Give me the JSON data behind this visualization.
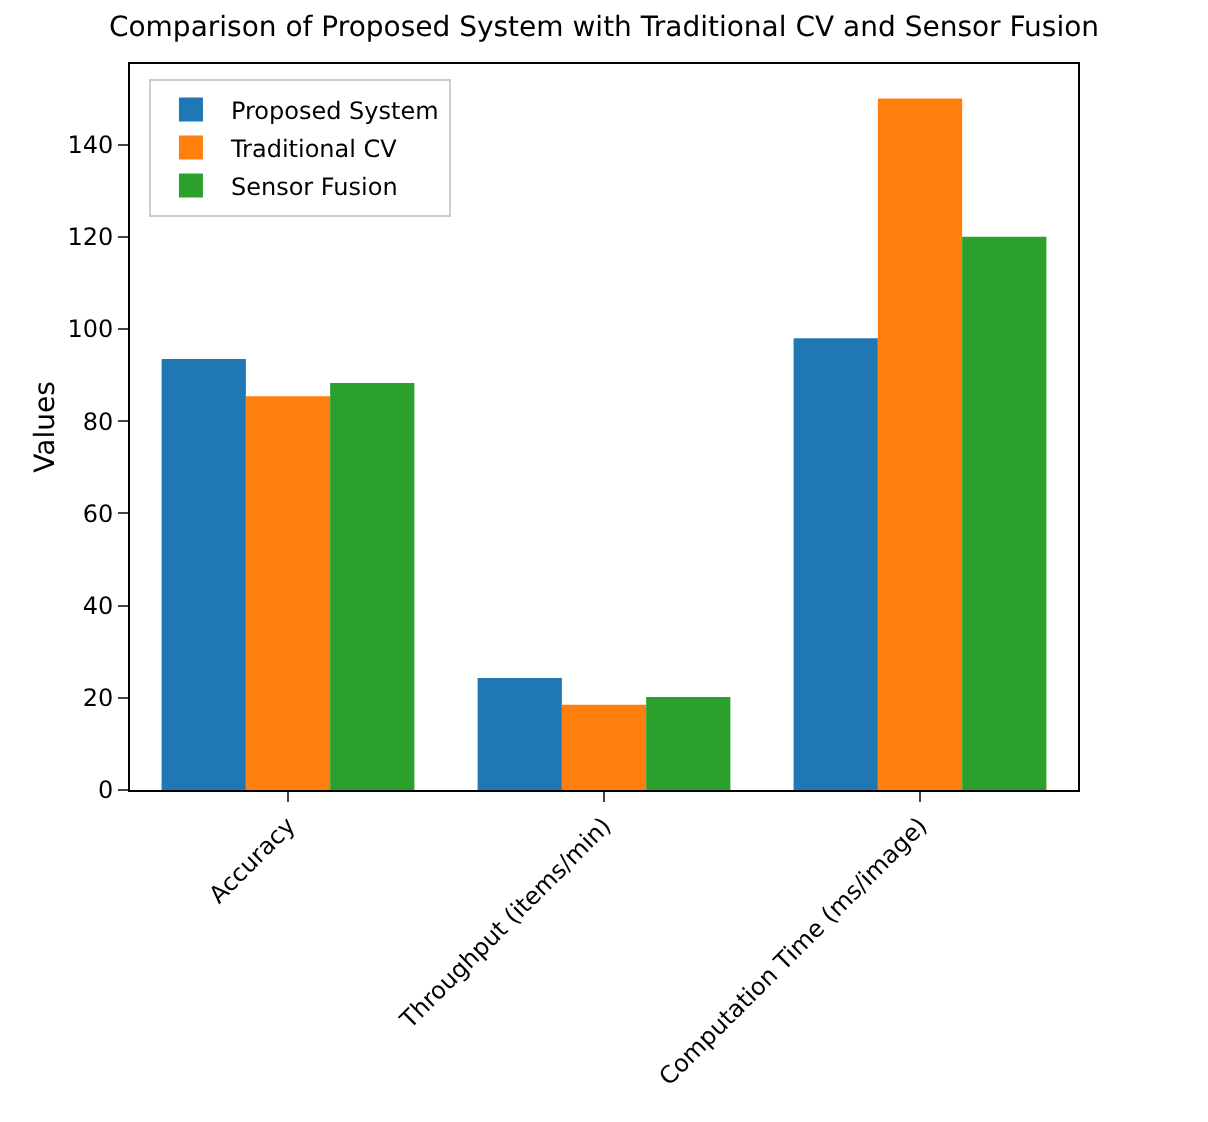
{
  "chart_data": {
    "type": "bar",
    "title": "Comparison of Proposed System with Traditional CV and Sensor Fusion",
    "ylabel": "Values",
    "categories": [
      "Accuracy",
      "Throughput (items/min)",
      "Computation Time (ms/image)"
    ],
    "series": [
      {
        "name": "Proposed System",
        "color": "#1f77b4",
        "values": [
          93.5,
          24.3,
          98
        ]
      },
      {
        "name": "Traditional CV",
        "color": "#ff7f0e",
        "values": [
          85.4,
          18.5,
          150
        ]
      },
      {
        "name": "Sensor Fusion",
        "color": "#2ca02c",
        "values": [
          88.3,
          20.2,
          120
        ]
      }
    ],
    "ylim": [
      0,
      157.5
    ],
    "yticks": [
      0,
      20,
      40,
      60,
      80,
      100,
      120,
      140
    ],
    "grid": false,
    "legend": "top left"
  }
}
